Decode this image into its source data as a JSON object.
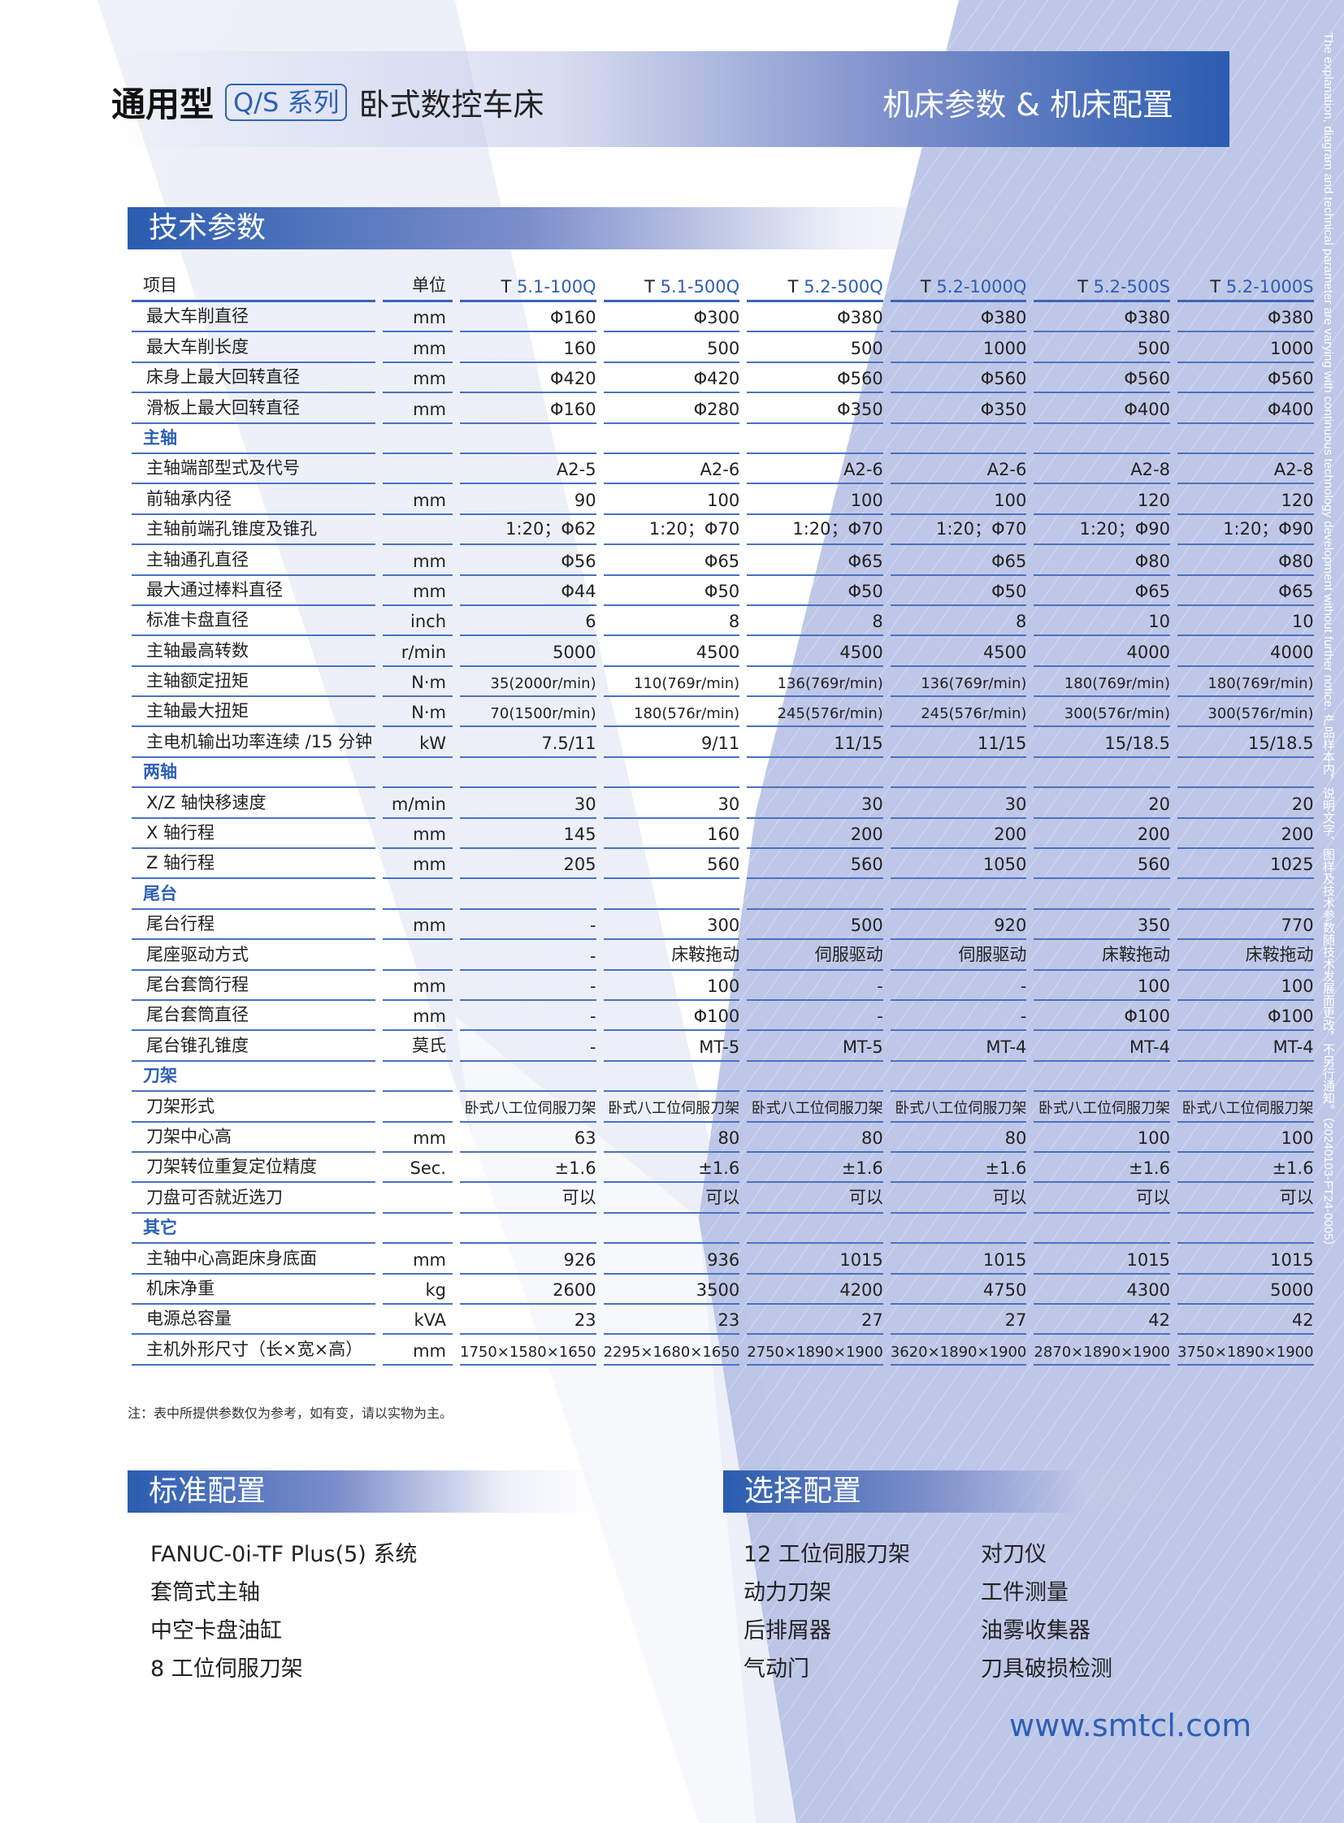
{
  "header": {
    "title_bold": "通用型",
    "series_badge": "Q/S 系列",
    "title_rest": "卧式数控车床",
    "right_title": "机床参数 & 机床配置"
  },
  "side_note": {
    "en": "The explanation, diagram and technical parameter are varying with continuous technology development without further notice.",
    "cn": "产品样本内，说明文字、图样及技术参数随技术发展而更改，不另行通知。（20240103-FT24-0005）"
  },
  "tech": {
    "section_title": "技术参数",
    "col_item": "项目",
    "col_unit": "单位",
    "models": [
      {
        "prefix": "T",
        "name": "5.1-100Q"
      },
      {
        "prefix": "T",
        "name": "5.1-500Q"
      },
      {
        "prefix": "T",
        "name": "5.2-500Q"
      },
      {
        "prefix": "T",
        "name": "5.2-1000Q"
      },
      {
        "prefix": "T",
        "name": "5.2-500S"
      },
      {
        "prefix": "T",
        "name": "5.2-1000S"
      }
    ],
    "rows": [
      {
        "item": "最大车削直径",
        "unit": "mm",
        "values": [
          "Φ160",
          "Φ300",
          "Φ380",
          "Φ380",
          "Φ380",
          "Φ380"
        ]
      },
      {
        "item": "最大车削长度",
        "unit": "mm",
        "values": [
          "160",
          "500",
          "500",
          "1000",
          "500",
          "1000"
        ]
      },
      {
        "item": "床身上最大回转直径",
        "unit": "mm",
        "values": [
          "Φ420",
          "Φ420",
          "Φ560",
          "Φ560",
          "Φ560",
          "Φ560"
        ]
      },
      {
        "item": "滑板上最大回转直径",
        "unit": "mm",
        "values": [
          "Φ160",
          "Φ280",
          "Φ350",
          "Φ350",
          "Φ400",
          "Φ400"
        ]
      },
      {
        "section": "主轴"
      },
      {
        "item": "主轴端部型式及代号",
        "unit": "",
        "values": [
          "A2-5",
          "A2-6",
          "A2-6",
          "A2-6",
          "A2-8",
          "A2-8"
        ]
      },
      {
        "item": "前轴承内径",
        "unit": "mm",
        "values": [
          "90",
          "100",
          "100",
          "100",
          "120",
          "120"
        ]
      },
      {
        "item": "主轴前端孔锥度及锥孔",
        "unit": "",
        "values": [
          "1:20；Φ62",
          "1:20；Φ70",
          "1:20；Φ70",
          "1:20；Φ70",
          "1:20；Φ90",
          "1:20；Φ90"
        ]
      },
      {
        "item": "主轴通孔直径",
        "unit": "mm",
        "values": [
          "Φ56",
          "Φ65",
          "Φ65",
          "Φ65",
          "Φ80",
          "Φ80"
        ]
      },
      {
        "item": "最大通过棒料直径",
        "unit": "mm",
        "values": [
          "Φ44",
          "Φ50",
          "Φ50",
          "Φ50",
          "Φ65",
          "Φ65"
        ]
      },
      {
        "item": "标准卡盘直径",
        "unit": "inch",
        "values": [
          "6",
          "8",
          "8",
          "8",
          "10",
          "10"
        ]
      },
      {
        "item": "主轴最高转数",
        "unit": "r/min",
        "values": [
          "5000",
          "4500",
          "4500",
          "4500",
          "4000",
          "4000"
        ]
      },
      {
        "item": "主轴额定扭矩",
        "unit": "N·m",
        "values": [
          "35(2000r/min)",
          "110(769r/min)",
          "136(769r/min)",
          "136(769r/min)",
          "180(769r/min)",
          "180(769r/min)"
        ],
        "small": true
      },
      {
        "item": "主轴最大扭矩",
        "unit": "N·m",
        "values": [
          "70(1500r/min)",
          "180(576r/min)",
          "245(576r/min)",
          "245(576r/min)",
          "300(576r/min)",
          "300(576r/min)"
        ],
        "small": true
      },
      {
        "item": "主电机输出功率连续 /15 分钟",
        "unit": "kW",
        "values": [
          "7.5/11",
          "9/11",
          "11/15",
          "11/15",
          "15/18.5",
          "15/18.5"
        ]
      },
      {
        "section": "两轴"
      },
      {
        "item": "X/Z 轴快移速度",
        "unit": "m/min",
        "values": [
          "30",
          "30",
          "30",
          "30",
          "20",
          "20"
        ]
      },
      {
        "item": "X 轴行程",
        "unit": "mm",
        "values": [
          "145",
          "160",
          "200",
          "200",
          "200",
          "200"
        ]
      },
      {
        "item": "Z 轴行程",
        "unit": "mm",
        "values": [
          "205",
          "560",
          "560",
          "1050",
          "560",
          "1025"
        ]
      },
      {
        "section": "尾台"
      },
      {
        "item": "尾台行程",
        "unit": "mm",
        "values": [
          "-",
          "300",
          "500",
          "920",
          "350",
          "770"
        ]
      },
      {
        "item": "尾座驱动方式",
        "unit": "",
        "values": [
          "-",
          "床鞍拖动",
          "伺服驱动",
          "伺服驱动",
          "床鞍拖动",
          "床鞍拖动"
        ]
      },
      {
        "item": "尾台套筒行程",
        "unit": "mm",
        "values": [
          "-",
          "100",
          "-",
          "-",
          "100",
          "100"
        ]
      },
      {
        "item": "尾台套筒直径",
        "unit": "mm",
        "values": [
          "-",
          "Φ100",
          "-",
          "-",
          "Φ100",
          "Φ100"
        ]
      },
      {
        "item": "尾台锥孔锥度",
        "unit": "莫氏",
        "values": [
          "-",
          "MT-5",
          "MT-5",
          "MT-4",
          "MT-4",
          "MT-4"
        ]
      },
      {
        "section": "刀架"
      },
      {
        "item": "刀架形式",
        "unit": "",
        "values": [
          "卧式八工位伺服刀架",
          "卧式八工位伺服刀架",
          "卧式八工位伺服刀架",
          "卧式八工位伺服刀架",
          "卧式八工位伺服刀架",
          "卧式八工位伺服刀架"
        ],
        "small": true
      },
      {
        "item": "刀架中心高",
        "unit": "mm",
        "values": [
          "63",
          "80",
          "80",
          "80",
          "100",
          "100"
        ]
      },
      {
        "item": "刀架转位重复定位精度",
        "unit": "Sec.",
        "values": [
          "±1.6",
          "±1.6",
          "±1.6",
          "±1.6",
          "±1.6",
          "±1.6"
        ]
      },
      {
        "item": "刀盘可否就近选刀",
        "unit": "",
        "values": [
          "可以",
          "可以",
          "可以",
          "可以",
          "可以",
          "可以"
        ]
      },
      {
        "section": "其它"
      },
      {
        "item": "主轴中心高距床身底面",
        "unit": "mm",
        "values": [
          "926",
          "936",
          "1015",
          "1015",
          "1015",
          "1015"
        ]
      },
      {
        "item": "机床净重",
        "unit": "kg",
        "values": [
          "2600",
          "3500",
          "4200",
          "4750",
          "4300",
          "5000"
        ]
      },
      {
        "item": "电源总容量",
        "unit": "kVA",
        "values": [
          "23",
          "23",
          "27",
          "27",
          "42",
          "42"
        ]
      },
      {
        "item": "主机外形尺寸（长×宽×高）",
        "unit": "mm",
        "values": [
          "1750×1580×1650",
          "2295×1680×1650",
          "2750×1890×1900",
          "3620×1890×1900",
          "2870×1890×1900",
          "3750×1890×1900"
        ],
        "small": true
      }
    ],
    "note": "注：表中所提供参数仅为参考，如有变，请以实物为主。"
  },
  "standard": {
    "title": "标准配置",
    "items": [
      "FANUC-0i-TF Plus(5) 系统",
      "套筒式主轴",
      "中空卡盘油缸",
      "8 工位伺服刀架"
    ]
  },
  "optional": {
    "title": "选择配置",
    "items_col1": [
      "12 工位伺服刀架",
      "动力刀架",
      "后排屑器",
      "气动门"
    ],
    "items_col2": [
      "对刀仪",
      "工件测量",
      "油雾收集器",
      "刀具破损检测"
    ]
  },
  "footer": {
    "url": "www.smtcl.com"
  },
  "colors": {
    "accent": "#2d5fb5",
    "band_dark": "#2a5cb0",
    "band_light": "#b8c2e6"
  }
}
